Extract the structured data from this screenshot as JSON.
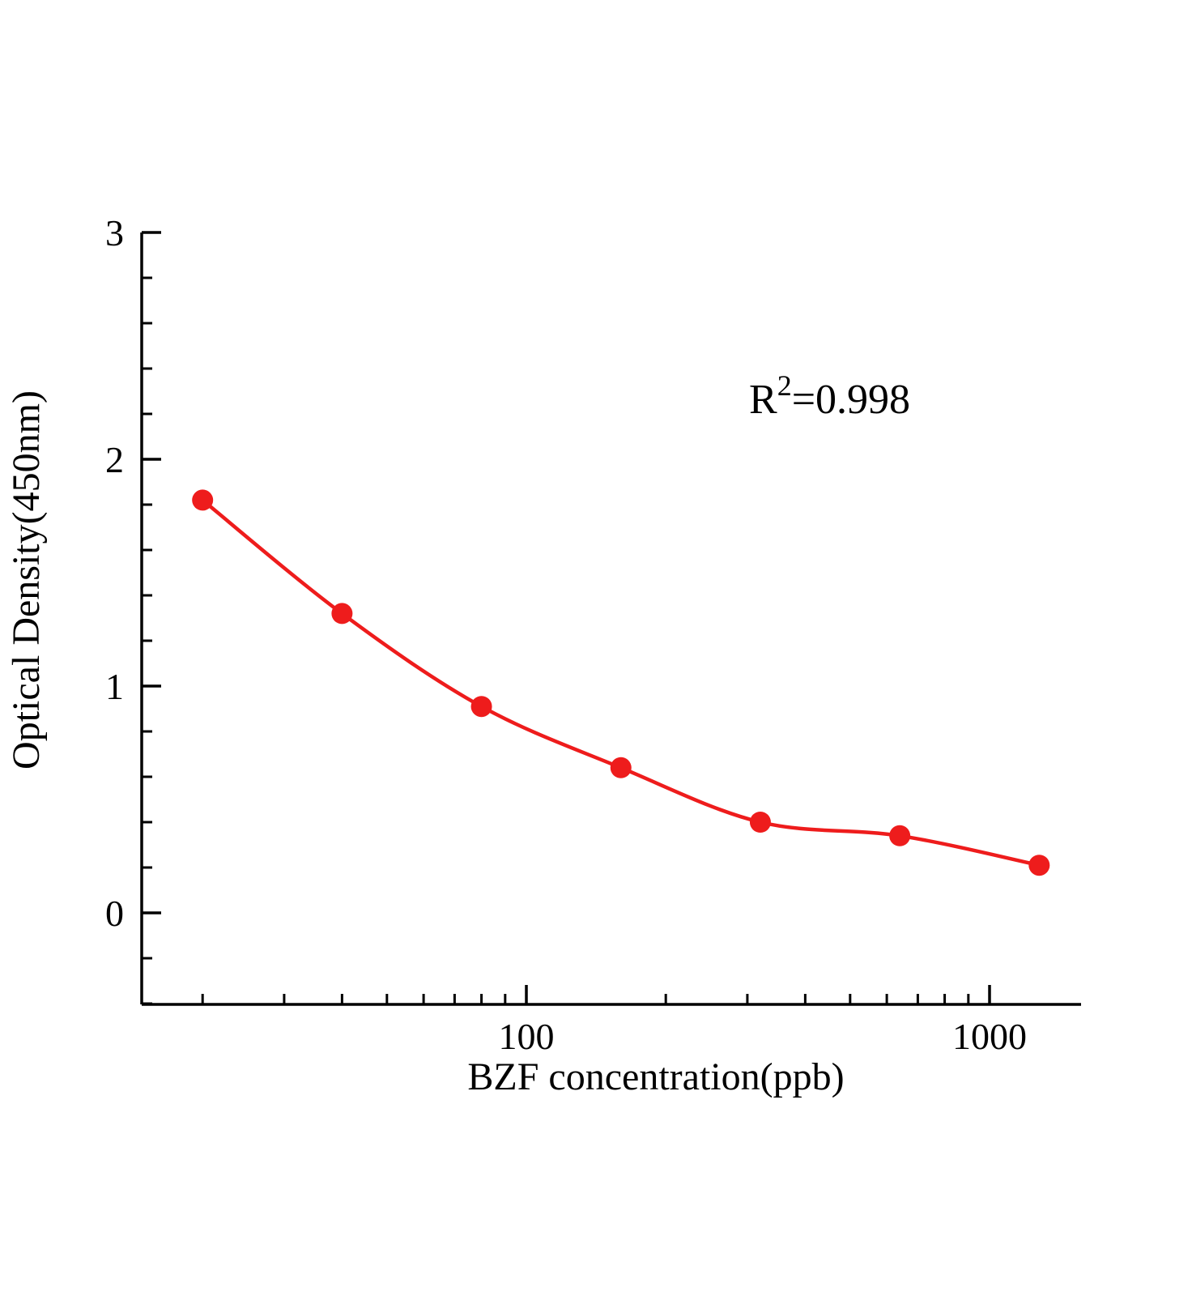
{
  "chart_data": {
    "type": "scatter",
    "title": "",
    "xlabel": "BZF  concentration(ppb)",
    "ylabel": "Optical Density(450nm)",
    "x_scale": "log10",
    "x": [
      20,
      40,
      80,
      160,
      320,
      640,
      1280
    ],
    "y": [
      1.82,
      1.32,
      0.91,
      0.64,
      0.4,
      0.34,
      0.21
    ],
    "curve": "smooth fitted line through points",
    "x_range": [
      14.8,
      1580
    ],
    "y_range": [
      -0.4,
      3
    ],
    "x_major_ticks": [
      100,
      1000
    ],
    "y_major_ticks": [
      0,
      1,
      2,
      3
    ],
    "y_minor_step": 0.2,
    "grid": "off",
    "legend": "none",
    "annotation": {
      "base": "R",
      "sup": "2",
      "rest": "=0.998"
    },
    "marker_color": "#ee1c1c",
    "line_color": "#ee1c1c",
    "axis_color": "#000000"
  }
}
